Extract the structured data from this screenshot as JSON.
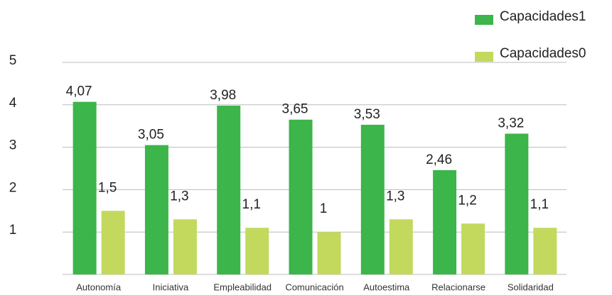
{
  "chart_data": {
    "type": "bar",
    "categories": [
      "Autonomía",
      "Iniciativa",
      "Empleabilidad",
      "Comunicación",
      "Autoestima",
      "Relacionarse",
      "Solidaridad"
    ],
    "series": [
      {
        "name": "Capacidades1",
        "color": "#3cb54a",
        "values": [
          4.07,
          3.05,
          3.98,
          3.65,
          3.53,
          2.46,
          3.32
        ],
        "value_labels": [
          "4,07",
          "3,05",
          "3,98",
          "3,65",
          "3,53",
          "2,46",
          "3,32"
        ]
      },
      {
        "name": "Capacidades0",
        "color": "#c2d95e",
        "values": [
          1.5,
          1.3,
          1.1,
          1,
          1.3,
          1.2,
          1.1
        ],
        "value_labels": [
          "1,5",
          "1,3",
          "1,1",
          "1",
          "1,3",
          "1,2",
          "1,1"
        ]
      }
    ],
    "ylim": [
      0,
      5
    ],
    "yticks": [
      1,
      2,
      3,
      4,
      5
    ],
    "grid": true,
    "legend": "top-right"
  }
}
